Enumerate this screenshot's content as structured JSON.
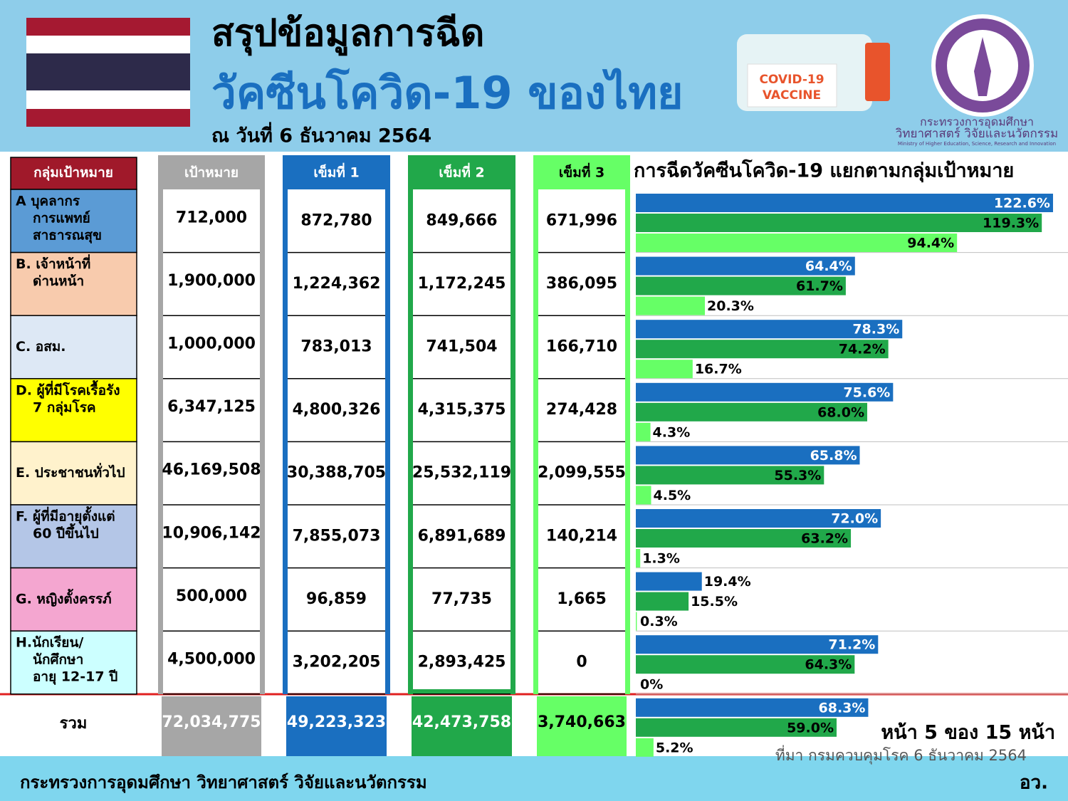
{
  "header": {
    "title_line1": "สรุปข้อมูลการฉีด",
    "title_line2": "วัคซีนโควิด-19 ของไทย",
    "date": "ณ วันที่ 6 ธันวาคม 2564",
    "vaccine_label": [
      "COVID-19",
      "VACCINE"
    ],
    "ministry_th": [
      "กระทรวงการอุดมศึกษา",
      "วิทยาศาสตร์ วิจัยและนวัตกรรม"
    ],
    "ministry_en": "Ministry of Higher Education, Science, Research and Innovation"
  },
  "table": {
    "columns": [
      "กลุ่มเป้าหมาย",
      "เป้าหมาย",
      "เข็มที่ 1",
      "เข็มที่ 2",
      "เข็มที่ 3"
    ],
    "rows": [
      [
        [
          "A บุคลากร",
          "การแพทย์",
          "สาธารณสุข"
        ],
        "712,000",
        "872,780",
        "849,666",
        "671,996"
      ],
      [
        [
          "B. เจ้าหน้าที่",
          "ด่านหน้า"
        ],
        "1,900,000",
        "1,224,362",
        "1,172,245",
        "386,095"
      ],
      [
        [
          "C. อสม."
        ],
        "1,000,000",
        "783,013",
        "741,504",
        "166,710"
      ],
      [
        [
          "D. ผู้ที่มีโรคเรื้อรัง",
          "7 กลุ่มโรค"
        ],
        "6,347,125",
        "4,800,326",
        "4,315,375",
        "274,428"
      ],
      [
        [
          "E. ประชาชนทั่วไป"
        ],
        "46,169,508",
        "30,388,705",
        "25,532,119",
        "2,099,555"
      ],
      [
        [
          "F. ผู้ที่มีอายุตั้งแต่",
          "60 ปีขึ้นไป"
        ],
        "10,906,142",
        "7,855,073",
        "6,891,689",
        "140,214"
      ],
      [
        [
          "G. หญิงตั้งครรภ์"
        ],
        "500,000",
        "96,859",
        "77,735",
        "1,665"
      ],
      [
        [
          "H.นักเรียน/",
          "นักศึกษา",
          "อายุ 12-17 ปี"
        ],
        "4,500,000",
        "3,202,205",
        "2,893,425",
        "0"
      ]
    ],
    "total": [
      [
        "รวม"
      ],
      "72,034,775",
      "49,223,323",
      "42,473,758",
      "3,740,663"
    ]
  },
  "chart_data": {
    "type": "bar",
    "orientation": "horizontal",
    "title": "การฉีดวัคซีนโควิด-19 แยกตามกลุ่มเป้าหมาย",
    "categories": [
      null,
      null,
      null,
      null,
      null,
      null,
      null,
      null,
      null
    ],
    "xlim": [
      0,
      127
    ],
    "series": [
      {
        "name": "เข็มที่ 1",
        "color": "#1a6fc0",
        "values": [
          122.6,
          64.4,
          78.3,
          75.6,
          65.8,
          72.0,
          19.4,
          71.2,
          68.3
        ],
        "value_labels": [
          "122.6%",
          "64.4%",
          "78.3%",
          "75.6%",
          "65.8%",
          "72.0%",
          "19.4%",
          "71.2%",
          "68.3%"
        ]
      },
      {
        "name": "เข็มที่ 2",
        "color": "#21a84a",
        "values": [
          119.3,
          61.7,
          74.2,
          68.0,
          55.3,
          63.2,
          15.5,
          64.3,
          59.0
        ],
        "value_labels": [
          "119.3%",
          "61.7%",
          "74.2%",
          "68.0%",
          "55.3%",
          "63.2%",
          "15.5%",
          "64.3%",
          "59.0%"
        ]
      },
      {
        "name": "เข็มที่ 3",
        "color": "#66ff66",
        "values": [
          94.4,
          20.3,
          16.7,
          4.3,
          4.5,
          1.3,
          0.3,
          0,
          5.2
        ],
        "value_labels": [
          "94.4%",
          "20.3%",
          "16.7%",
          "4.3%",
          "4.5%",
          "1.3%",
          "0.3%",
          "0%",
          "5.2%"
        ]
      }
    ]
  },
  "page_number": "หน้า 5 ของ 15 หน้า",
  "source": "ที่มา กรมควบคุมโรค 6 ธันวาคม 2564",
  "footer": {
    "ministry": "กระทรวงการอุดมศึกษา วิทยาศาสตร์ วิจัยและนวัตกรรม",
    "abbreviation": "อว."
  }
}
